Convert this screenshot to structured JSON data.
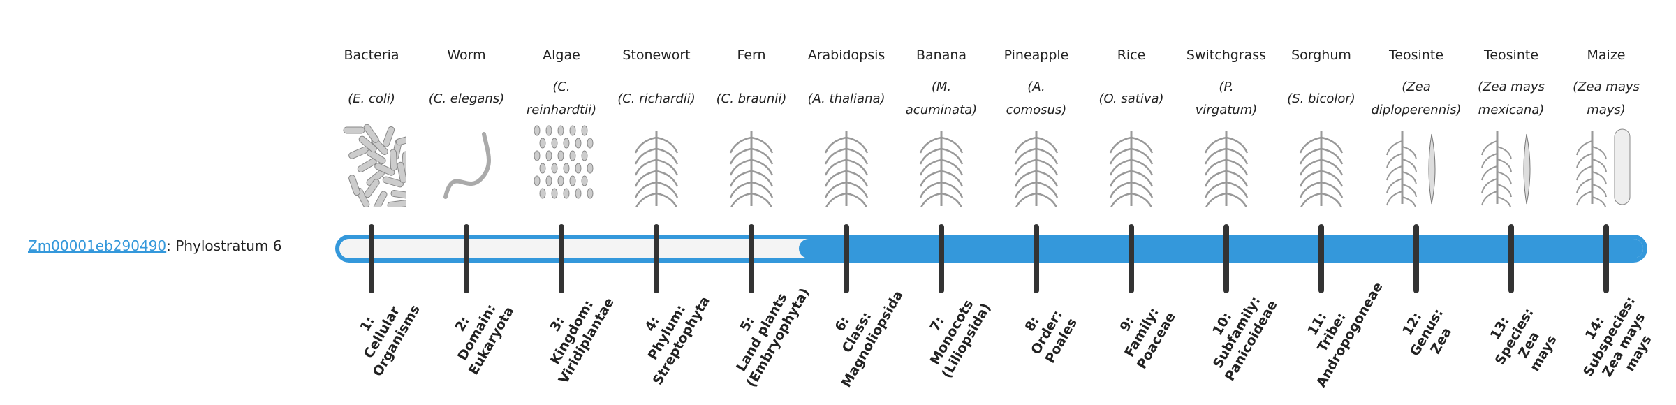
{
  "gene": {
    "id": "Zm00001eb290490",
    "suffix": ": Phylostratum 6"
  },
  "bar": {
    "color": "#3498db",
    "phylostratum": 6,
    "total_strata": 14
  },
  "organisms": [
    {
      "name": "Bacteria",
      "species": "(E. coli)",
      "icon": "bacteria-icon",
      "stratum": "1:\nCellular\nOrganisms"
    },
    {
      "name": "Worm",
      "species": "(C. elegans)",
      "icon": "worm-icon",
      "stratum": "2:\nDomain:\nEukaryota"
    },
    {
      "name": "Algae",
      "species": "(C.\nreinhardtii)",
      "icon": "algae-icon",
      "stratum": "3:\nKingdom:\nViridiplantae"
    },
    {
      "name": "Stonewort",
      "species": "(C. richardii)",
      "icon": "stonewort-icon",
      "stratum": "4:\nPhylum:\nStreptophyta"
    },
    {
      "name": "Fern",
      "species": "(C. braunii)",
      "icon": "fern-icon",
      "stratum": "5:\nLand plants\n(Embryophyta)"
    },
    {
      "name": "Arabidopsis",
      "species": "(A. thaliana)",
      "icon": "arabidopsis-icon",
      "stratum": "6:\nClass:\nMagnoliopsida"
    },
    {
      "name": "Banana",
      "species": "(M.\nacuminata)",
      "icon": "banana-icon",
      "stratum": "7:\nMonocots\n(Liliopsida)"
    },
    {
      "name": "Pineapple",
      "species": "(A.\ncomosus)",
      "icon": "pineapple-icon",
      "stratum": "8:\nOrder:\nPoales"
    },
    {
      "name": "Rice",
      "species": "(O. sativa)",
      "icon": "rice-icon",
      "stratum": "9:\nFamily:\nPoaceae"
    },
    {
      "name": "Switchgrass",
      "species": "(P.\nvirgatum)",
      "icon": "switchgrass-icon",
      "stratum": "10:\nSubfamily:\nPanicoideae"
    },
    {
      "name": "Sorghum",
      "species": "(S. bicolor)",
      "icon": "sorghum-icon",
      "stratum": "11:\nTribe:\nAndropogoneae"
    },
    {
      "name": "Teosinte",
      "species": "(Zea\ndiploperennis)",
      "icon": "teosinte-icon",
      "stratum": "12:\nGenus:\nZea"
    },
    {
      "name": "Teosinte",
      "species": "(Zea mays\nmexicana)",
      "icon": "teosinte-icon",
      "stratum": "13:\nSpecies:\nZea\nmays"
    },
    {
      "name": "Maize",
      "species": "(Zea mays\nmays)",
      "icon": "maize-icon",
      "stratum": "14:\nSubspecies:\nZea mays\nmays"
    }
  ]
}
